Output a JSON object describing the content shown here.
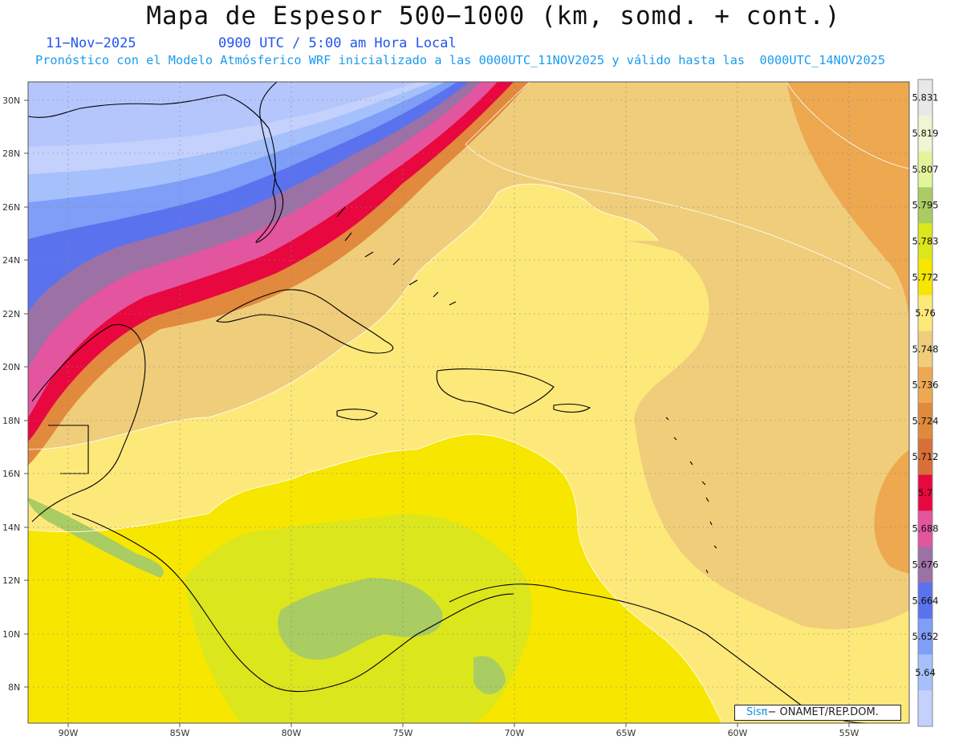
{
  "header": {
    "title": "Mapa de Espesor 500−1000 (km, somd. + cont.)",
    "date": "11−Nov−2025",
    "time": "0900 UTC / 5:00 am Hora Local",
    "forecast_info": "Pronóstico con el Modelo Atmósferico WRF inicializado a las 0000UTC_11NOV2025 y válido hasta las  0000UTC_14NOV2025"
  },
  "map": {
    "lat_labels": [
      "30N",
      "28N",
      "26N",
      "24N",
      "22N",
      "20N",
      "18N",
      "16N",
      "14N",
      "12N",
      "10N",
      "8N"
    ],
    "lon_labels": [
      "90W",
      "85W",
      "80W",
      "75W",
      "70W",
      "65W",
      "60W",
      "55W"
    ]
  },
  "colorbar": {
    "levels": [
      "5.831",
      "5.819",
      "5.807",
      "5.795",
      "5.783",
      "5.772",
      "5.76",
      "5.748",
      "5.736",
      "5.724",
      "5.712",
      "5.7",
      "5.688",
      "5.676",
      "5.664",
      "5.652",
      "5.64"
    ],
    "colors": [
      "#e8e8e8",
      "#f0f5d2",
      "#e2f59a",
      "#a9cc63",
      "#dce61c",
      "#f7e600",
      "#fde97a",
      "#f0cd7a",
      "#eda850",
      "#e1893d",
      "#d96f38",
      "#e8073f",
      "#e3559e",
      "#9c71a6",
      "#5b72ee",
      "#7e9ef7",
      "#a6c0fc",
      "#c4d1fd"
    ]
  },
  "credit": {
    "brand": "Sisπ",
    "org": "− ONAMET/REP.DOM."
  }
}
